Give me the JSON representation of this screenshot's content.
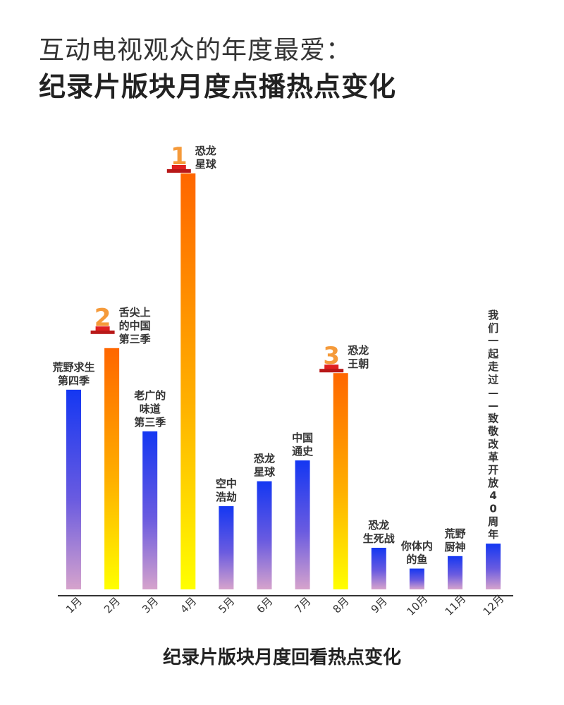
{
  "header": {
    "title_line1": "互动电视观众的年度最爱：",
    "title_line2": "纪录片版块月度点播热点变化"
  },
  "colors": {
    "blue_top": "#1437f2",
    "blue_mid": "#6a5be0",
    "blue_bottom": "#d6a3cc",
    "orange_top": "#ff6600",
    "orange_mid": "#ffb000",
    "yellow_bottom": "#ffff00",
    "rank_orange": "#f59a3a",
    "rank_red": "#e02020",
    "axis": "#333333"
  },
  "chart_data": {
    "type": "bar",
    "title": "互动电视观众的年度最爱：纪录片版块月度点播热点变化",
    "xlabel": "纪录片版块月度回看热点变化",
    "ylabel": "",
    "grid": false,
    "categories": [
      "1月",
      "2月",
      "3月",
      "4月",
      "5月",
      "6月",
      "7月",
      "8月",
      "9月",
      "10月",
      "11月",
      "12月"
    ],
    "values": [
      48,
      58,
      38,
      100,
      20,
      26,
      31,
      52,
      10,
      5,
      8,
      11
    ],
    "ylim": [
      0,
      100
    ],
    "bar_labels": [
      [
        "荒野求生",
        "第四季"
      ],
      [
        "舌尖上",
        "的中国",
        "第三季"
      ],
      [
        "老广的",
        "味道",
        "第三季"
      ],
      [
        "恐龙",
        "星球"
      ],
      [
        "空中",
        "浩劫"
      ],
      [
        "恐龙",
        "星球"
      ],
      [
        "中国",
        "通史"
      ],
      [
        "恐龙",
        "王朝"
      ],
      [
        "恐龙",
        "生死战"
      ],
      [
        "你体内",
        "的鱼"
      ],
      [
        "荒野",
        "厨神"
      ],
      [
        "我",
        "们",
        "一",
        "起",
        "走",
        "过",
        "—",
        "—",
        "致",
        "敬",
        "改",
        "革",
        "开",
        "放",
        "4",
        "0",
        "周",
        "年"
      ]
    ],
    "highlight": [
      "none",
      "orange",
      "none",
      "orange",
      "none",
      "none",
      "none",
      "orange",
      "none",
      "none",
      "none",
      "none"
    ],
    "ranks": [
      {
        "index": 3,
        "rank": "1"
      },
      {
        "index": 1,
        "rank": "2"
      },
      {
        "index": 7,
        "rank": "3"
      }
    ]
  }
}
